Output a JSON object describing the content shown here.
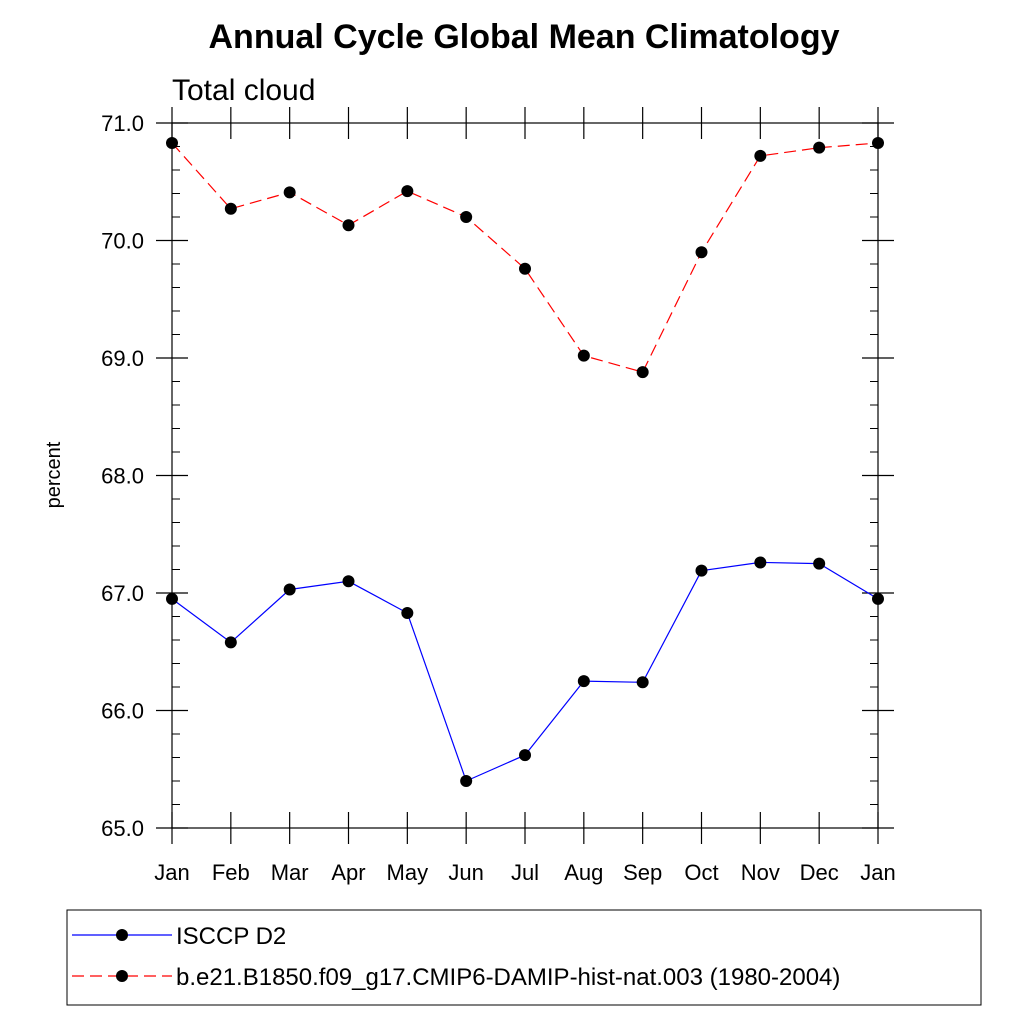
{
  "chart_data": {
    "type": "line",
    "title": "Annual Cycle Global Mean Climatology",
    "subtitle": "Total cloud",
    "xlabel": "",
    "ylabel": "percent",
    "categories": [
      "Jan",
      "Feb",
      "Mar",
      "Apr",
      "May",
      "Jun",
      "Jul",
      "Aug",
      "Sep",
      "Oct",
      "Nov",
      "Dec",
      "Jan"
    ],
    "ylim": [
      65.0,
      71.0
    ],
    "yticks": [
      "65.0",
      "66.0",
      "67.0",
      "68.0",
      "69.0",
      "70.0",
      "71.0"
    ],
    "ytick_values": [
      65,
      66,
      67,
      68,
      69,
      70,
      71
    ],
    "grid": false,
    "legend_position": "bottom",
    "series": [
      {
        "name": "ISCCP D2",
        "color": "#0000ff",
        "dashed": false,
        "marker": "filled-circle",
        "values": [
          66.95,
          66.58,
          67.03,
          67.1,
          66.83,
          65.4,
          65.62,
          66.25,
          66.24,
          67.19,
          67.26,
          67.25,
          66.95
        ]
      },
      {
        "name": "b.e21.B1850.f09_g17.CMIP6-DAMIP-hist-nat.003 (1980-2004)",
        "color": "#ff0000",
        "dashed": true,
        "marker": "filled-circle",
        "values": [
          70.83,
          70.27,
          70.41,
          70.13,
          70.42,
          70.2,
          69.76,
          69.02,
          68.88,
          69.9,
          70.72,
          70.79,
          70.83
        ]
      }
    ]
  }
}
